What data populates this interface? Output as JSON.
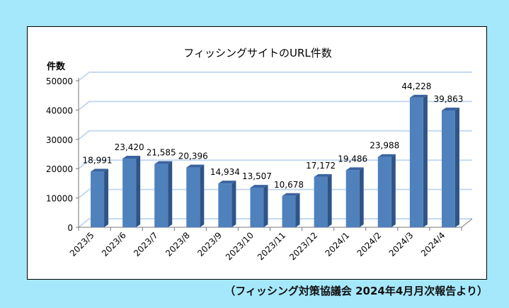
{
  "chart_data": {
    "type": "bar",
    "title": "フィッシングサイトのURL件数",
    "ylabel": "件数",
    "xlabel": "",
    "categories": [
      "2023/5",
      "2023/6",
      "2023/7",
      "2023/8",
      "2023/9",
      "2023/10",
      "2023/11",
      "2023/12",
      "2024/1",
      "2024/2",
      "2024/3",
      "2024/4"
    ],
    "values": [
      18991,
      23420,
      21585,
      20396,
      14934,
      13507,
      10678,
      17172,
      19486,
      23988,
      44228,
      39863
    ],
    "data_labels": [
      "18,991",
      "23,420",
      "21,585",
      "20,396",
      "14,934",
      "13,507",
      "10,678",
      "17,172",
      "19,486",
      "23,988",
      "44,228",
      "39,863"
    ],
    "yticks": [
      0,
      10000,
      20000,
      30000,
      40000,
      50000
    ],
    "ylim": [
      0,
      50000
    ],
    "grid": true,
    "legend": "none",
    "style": "3d-column",
    "colors": {
      "bar_front": "#4f81bd",
      "bar_side": "#2f5487",
      "bar_top": "#3a64a0",
      "grid": "#c6d9f1",
      "background": "#a6e8fb"
    }
  },
  "source_note": "（フィッシング対策協議会 2024年4月月次報告より）"
}
